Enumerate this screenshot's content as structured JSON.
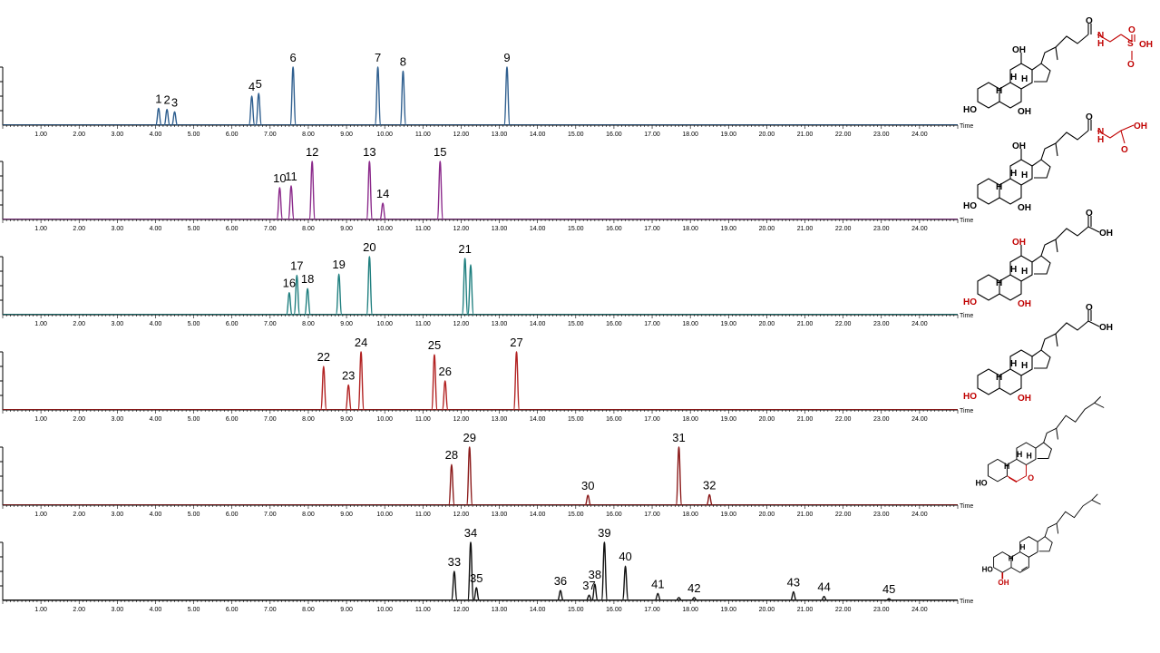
{
  "axis": {
    "time_label": "Time",
    "ticks": [
      1,
      2,
      3,
      4,
      5,
      6,
      7,
      8,
      9,
      10,
      11,
      12,
      13,
      14,
      15,
      16,
      17,
      18,
      19,
      20,
      21,
      22,
      23,
      24
    ],
    "tick_labels": [
      "1.00",
      "2.00",
      "3.00",
      "4.00",
      "5.00",
      "6.00",
      "7.00",
      "8.00",
      "9.00",
      "10.00",
      "11.00",
      "12.00",
      "13.00",
      "14.00",
      "15.00",
      "16.00",
      "17.00",
      "18.00",
      "19.00",
      "20.00",
      "21.00",
      "22.00",
      "23.00",
      "24.00"
    ],
    "xlim": [
      0,
      25
    ]
  },
  "chart_data": [
    {
      "type": "line",
      "color": "#2f5f8f",
      "ylim": [
        0,
        100
      ],
      "series": [
        {
          "peaks": [
            {
              "label": "1",
              "x": 4.08,
              "y": 29
            },
            {
              "label": "2",
              "x": 4.3,
              "y": 27
            },
            {
              "label": "3",
              "x": 4.5,
              "y": 23
            },
            {
              "label": "4",
              "x": 6.52,
              "y": 50
            },
            {
              "label": "5",
              "x": 6.7,
              "y": 55
            },
            {
              "label": "6",
              "x": 7.6,
              "y": 100
            },
            {
              "label": "7",
              "x": 9.82,
              "y": 100
            },
            {
              "label": "8",
              "x": 10.48,
              "y": 93
            },
            {
              "label": "9",
              "x": 13.2,
              "y": 100
            }
          ]
        }
      ]
    },
    {
      "type": "line",
      "color": "#8b2a8b",
      "ylim": [
        0,
        100
      ],
      "series": [
        {
          "peaks": [
            {
              "label": "10",
              "x": 7.25,
              "y": 55
            },
            {
              "label": "11",
              "x": 7.55,
              "y": 58
            },
            {
              "label": "12",
              "x": 8.1,
              "y": 100
            },
            {
              "label": "13",
              "x": 9.6,
              "y": 100
            },
            {
              "label": "14",
              "x": 9.95,
              "y": 28
            },
            {
              "label": "15",
              "x": 11.45,
              "y": 100
            }
          ]
        }
      ]
    },
    {
      "type": "line",
      "color": "#1f7f7f",
      "ylim": [
        0,
        100
      ],
      "series": [
        {
          "peaks": [
            {
              "label": "16",
              "x": 7.5,
              "y": 38
            },
            {
              "label": "17",
              "x": 7.7,
              "y": 68
            },
            {
              "label": "18",
              "x": 7.98,
              "y": 45
            },
            {
              "label": "19",
              "x": 8.8,
              "y": 70
            },
            {
              "label": "20",
              "x": 9.6,
              "y": 100
            },
            {
              "label": "21",
              "x": 12.1,
              "y": 97
            },
            {
              "label": "",
              "x": 12.25,
              "y": 86
            }
          ]
        }
      ]
    },
    {
      "type": "line",
      "color": "#b22222",
      "ylim": [
        0,
        100
      ],
      "series": [
        {
          "peaks": [
            {
              "label": "22",
              "x": 8.4,
              "y": 75
            },
            {
              "label": "23",
              "x": 9.05,
              "y": 43
            },
            {
              "label": "24",
              "x": 9.38,
              "y": 100
            },
            {
              "label": "25",
              "x": 11.3,
              "y": 95
            },
            {
              "label": "26",
              "x": 11.58,
              "y": 50
            },
            {
              "label": "27",
              "x": 13.45,
              "y": 100
            }
          ]
        }
      ]
    },
    {
      "type": "line",
      "color": "#8b1a1a",
      "ylim": [
        0,
        100
      ],
      "series": [
        {
          "peaks": [
            {
              "label": "28",
              "x": 11.75,
              "y": 70
            },
            {
              "label": "29",
              "x": 12.22,
              "y": 100
            },
            {
              "label": "30",
              "x": 15.32,
              "y": 17
            },
            {
              "label": "31",
              "x": 17.7,
              "y": 100
            },
            {
              "label": "32",
              "x": 18.5,
              "y": 18
            }
          ]
        }
      ]
    },
    {
      "type": "line",
      "color": "#111111",
      "ylim": [
        0,
        100
      ],
      "series": [
        {
          "peaks": [
            {
              "label": "33",
              "x": 11.82,
              "y": 50
            },
            {
              "label": "34",
              "x": 12.25,
              "y": 100
            },
            {
              "label": "35",
              "x": 12.4,
              "y": 22
            },
            {
              "label": "36",
              "x": 14.6,
              "y": 17
            },
            {
              "label": "37",
              "x": 15.35,
              "y": 9
            },
            {
              "label": "38",
              "x": 15.5,
              "y": 28
            },
            {
              "label": "39",
              "x": 15.75,
              "y": 100
            },
            {
              "label": "40",
              "x": 16.3,
              "y": 59
            },
            {
              "label": "41",
              "x": 17.15,
              "y": 12
            },
            {
              "label": "",
              "x": 17.7,
              "y": 5
            },
            {
              "label": "42",
              "x": 18.1,
              "y": 5
            },
            {
              "label": "43",
              "x": 20.7,
              "y": 15
            },
            {
              "label": "44",
              "x": 21.5,
              "y": 7
            },
            {
              "label": "45",
              "x": 23.2,
              "y": 3
            }
          ]
        }
      ]
    }
  ],
  "structures": [
    {
      "name": "taurine-conjugated bile acid",
      "labels": [
        "OH",
        "O",
        "N",
        "H",
        "S",
        "O",
        "OH",
        "HO",
        "OH",
        "H",
        "H",
        "H",
        "O"
      ],
      "red": [
        "N",
        "H",
        "S",
        "O",
        "OH",
        "O"
      ]
    },
    {
      "name": "glycine-conjugated bile acid",
      "labels": [
        "OH",
        "O",
        "N",
        "H",
        "OH",
        "O",
        "HO",
        "OH",
        "H",
        "H",
        "H"
      ],
      "red": [
        "N",
        "H",
        "OH",
        "O"
      ]
    },
    {
      "name": "trihydroxy bile acid",
      "labels": [
        "OH",
        "O",
        "OH",
        "HO",
        "OH",
        "H",
        "H",
        "H"
      ],
      "red": [
        "OH",
        "HO",
        "OH"
      ]
    },
    {
      "name": "dihydroxy bile acid",
      "labels": [
        "O",
        "OH",
        "HO",
        "OH",
        "H",
        "H",
        "H"
      ],
      "red": [
        "HO",
        "OH"
      ]
    },
    {
      "name": "7-keto sterol",
      "labels": [
        "HO",
        "O",
        "H",
        "H",
        "H"
      ],
      "red": [
        "O"
      ]
    },
    {
      "name": "4-hydroxy sterol",
      "labels": [
        "HO",
        "OH",
        "H",
        "H"
      ],
      "red": [
        "OH"
      ]
    }
  ]
}
